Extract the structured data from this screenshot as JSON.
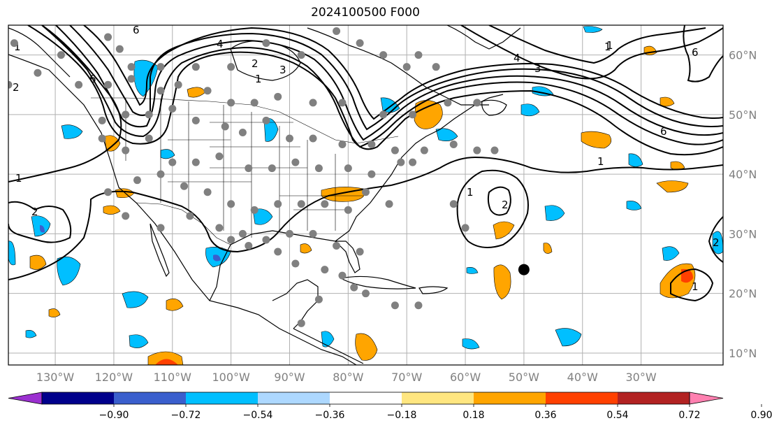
{
  "title": "2024100500 F000",
  "colors": {
    "land_outline": "#000000",
    "grid": "#b0b0b0",
    "obs_point": "#808080",
    "storm_center": "#000000",
    "contour": "#000000"
  },
  "axes": {
    "lon_labels": [
      "130°W",
      "120°W",
      "110°W",
      "100°W",
      "90°W",
      "80°W",
      "70°W",
      "60°W",
      "50°W",
      "40°W",
      "30°W"
    ],
    "lat_labels": [
      "60°N",
      "50°N",
      "40°N",
      "30°N",
      "20°N",
      "10°N"
    ]
  },
  "colorbar": {
    "colors": [
      "#9b30d0",
      "#00008b",
      "#3a5fcd",
      "#00bfff",
      "#add8ff",
      "#ffffff",
      "#ffe680",
      "#ffa500",
      "#ff4000",
      "#b22222",
      "#ff80b0"
    ],
    "tick_labels": [
      "−0.90",
      "−0.72",
      "−0.54",
      "−0.36",
      "−0.18",
      "0.18",
      "0.36",
      "0.54",
      "0.72",
      "0.90"
    ]
  },
  "contour_labels": [
    "6",
    "4",
    "3",
    "2",
    "1",
    "1",
    "6",
    "4",
    "3",
    "2",
    "1",
    "1",
    "2",
    "1",
    "6",
    "1",
    "1",
    "6",
    "1",
    "2",
    "2"
  ],
  "chart_data": {
    "type": "heatmap",
    "title": "2024100500 F000",
    "lon_range": [
      -138,
      -16
    ],
    "lat_range": [
      8,
      65
    ],
    "xticks": [
      "130°W",
      "120°W",
      "110°W",
      "100°W",
      "90°W",
      "80°W",
      "70°W",
      "60°W",
      "50°W",
      "40°W",
      "30°W"
    ],
    "yticks": [
      "60°N",
      "50°N",
      "40°N",
      "30°N",
      "20°N",
      "10°N"
    ],
    "grid": true,
    "storm_center": {
      "lon": -50,
      "lat": 24
    },
    "colorbar_levels": [
      -0.9,
      -0.72,
      -0.54,
      -0.36,
      -0.18,
      0.18,
      0.36,
      0.54,
      0.72,
      0.9
    ]
  }
}
